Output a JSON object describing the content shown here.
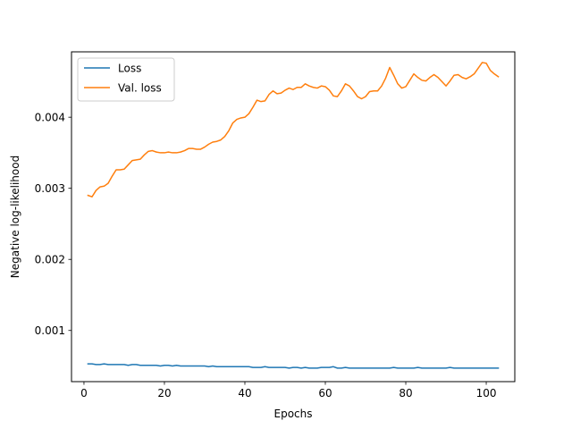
{
  "chart_data": {
    "type": "line",
    "title": "",
    "xlabel": "Epochs",
    "ylabel": "Negative log-likelihood",
    "xlim": [
      -3.1,
      107.1
    ],
    "ylim": [
      0.00028,
      0.00492
    ],
    "xticks": [
      0,
      20,
      40,
      60,
      80,
      100
    ],
    "xtick_labels": [
      "0",
      "20",
      "40",
      "60",
      "80",
      "100"
    ],
    "yticks": [
      0.001,
      0.002,
      0.003,
      0.004
    ],
    "ytick_labels": [
      "0.001",
      "0.002",
      "0.003",
      "0.004"
    ],
    "grid": false,
    "legend": "top-left",
    "series": [
      {
        "name": "Loss",
        "color": "#1f77b4",
        "x": [
          1,
          2,
          3,
          4,
          5,
          6,
          7,
          8,
          9,
          10,
          11,
          12,
          13,
          14,
          15,
          16,
          17,
          18,
          19,
          20,
          21,
          22,
          23,
          24,
          25,
          26,
          27,
          28,
          29,
          30,
          31,
          32,
          33,
          34,
          35,
          36,
          37,
          38,
          39,
          40,
          41,
          42,
          43,
          44,
          45,
          46,
          47,
          48,
          49,
          50,
          51,
          52,
          53,
          54,
          55,
          56,
          57,
          58,
          59,
          60,
          61,
          62,
          63,
          64,
          65,
          66,
          67,
          68,
          69,
          70,
          71,
          72,
          73,
          74,
          75,
          76,
          77,
          78,
          79,
          80,
          81,
          82,
          83,
          84,
          85,
          86,
          87,
          88,
          89,
          90,
          91,
          92,
          93,
          94,
          95,
          96,
          97,
          98,
          99,
          100,
          101,
          102,
          103
        ],
        "values": [
          0.00053,
          0.00053,
          0.00052,
          0.00052,
          0.00053,
          0.00052,
          0.00052,
          0.00052,
          0.00052,
          0.00052,
          0.00051,
          0.00052,
          0.00052,
          0.00051,
          0.00051,
          0.00051,
          0.00051,
          0.00051,
          0.0005,
          0.00051,
          0.00051,
          0.0005,
          0.00051,
          0.0005,
          0.0005,
          0.0005,
          0.0005,
          0.0005,
          0.0005,
          0.0005,
          0.00049,
          0.0005,
          0.00049,
          0.00049,
          0.00049,
          0.00049,
          0.00049,
          0.00049,
          0.00049,
          0.00049,
          0.00049,
          0.00048,
          0.00048,
          0.00048,
          0.00049,
          0.00048,
          0.00048,
          0.00048,
          0.00048,
          0.00048,
          0.00047,
          0.00048,
          0.00048,
          0.00047,
          0.00048,
          0.00047,
          0.00047,
          0.00047,
          0.00048,
          0.00048,
          0.00048,
          0.00049,
          0.00047,
          0.00047,
          0.00048,
          0.00047,
          0.00047,
          0.00047,
          0.00047,
          0.00047,
          0.00047,
          0.00047,
          0.00047,
          0.00047,
          0.00047,
          0.00047,
          0.00048,
          0.00047,
          0.00047,
          0.00047,
          0.00047,
          0.00047,
          0.00048,
          0.00047,
          0.00047,
          0.00047,
          0.00047,
          0.00047,
          0.00047,
          0.00047,
          0.00048,
          0.00047,
          0.00047,
          0.00047,
          0.00047,
          0.00047,
          0.00047,
          0.00047,
          0.00047,
          0.00047,
          0.00047,
          0.00047,
          0.00047
        ]
      },
      {
        "name": "Val. loss",
        "color": "#ff7f0e",
        "x": [
          1,
          2,
          3,
          4,
          5,
          6,
          7,
          8,
          9,
          10,
          11,
          12,
          13,
          14,
          15,
          16,
          17,
          18,
          19,
          20,
          21,
          22,
          23,
          24,
          25,
          26,
          27,
          28,
          29,
          30,
          31,
          32,
          33,
          34,
          35,
          36,
          37,
          38,
          39,
          40,
          41,
          42,
          43,
          44,
          45,
          46,
          47,
          48,
          49,
          50,
          51,
          52,
          53,
          54,
          55,
          56,
          57,
          58,
          59,
          60,
          61,
          62,
          63,
          64,
          65,
          66,
          67,
          68,
          69,
          70,
          71,
          72,
          73,
          74,
          75,
          76,
          77,
          78,
          79,
          80,
          81,
          82,
          83,
          84,
          85,
          86,
          87,
          88,
          89,
          90,
          91,
          92,
          93,
          94,
          95,
          96,
          97,
          98,
          99,
          100,
          101,
          102,
          103
        ],
        "values": [
          0.0029,
          0.00288,
          0.00297,
          0.00302,
          0.00303,
          0.00307,
          0.00317,
          0.00326,
          0.00326,
          0.00327,
          0.00333,
          0.00339,
          0.0034,
          0.00341,
          0.00347,
          0.00352,
          0.00353,
          0.00351,
          0.0035,
          0.0035,
          0.00351,
          0.0035,
          0.0035,
          0.00351,
          0.00353,
          0.00356,
          0.00356,
          0.00355,
          0.00355,
          0.00358,
          0.00362,
          0.00365,
          0.00366,
          0.00368,
          0.00373,
          0.00381,
          0.00392,
          0.00397,
          0.00399,
          0.004,
          0.00405,
          0.00414,
          0.00424,
          0.00422,
          0.00423,
          0.00432,
          0.00437,
          0.00433,
          0.00434,
          0.00438,
          0.00441,
          0.00439,
          0.00442,
          0.00442,
          0.00447,
          0.00444,
          0.00442,
          0.00441,
          0.00444,
          0.00443,
          0.00438,
          0.0043,
          0.00429,
          0.00437,
          0.00447,
          0.00444,
          0.00437,
          0.00429,
          0.00426,
          0.00429,
          0.00436,
          0.00437,
          0.00437,
          0.00444,
          0.00455,
          0.0047,
          0.00459,
          0.00447,
          0.00441,
          0.00443,
          0.00452,
          0.00461,
          0.00456,
          0.00452,
          0.00451,
          0.00456,
          0.0046,
          0.00456,
          0.0045,
          0.00444,
          0.00451,
          0.00459,
          0.0046,
          0.00456,
          0.00454,
          0.00457,
          0.00461,
          0.00469,
          0.00477,
          0.00476,
          0.00466,
          0.00461,
          0.00457
        ]
      }
    ]
  }
}
